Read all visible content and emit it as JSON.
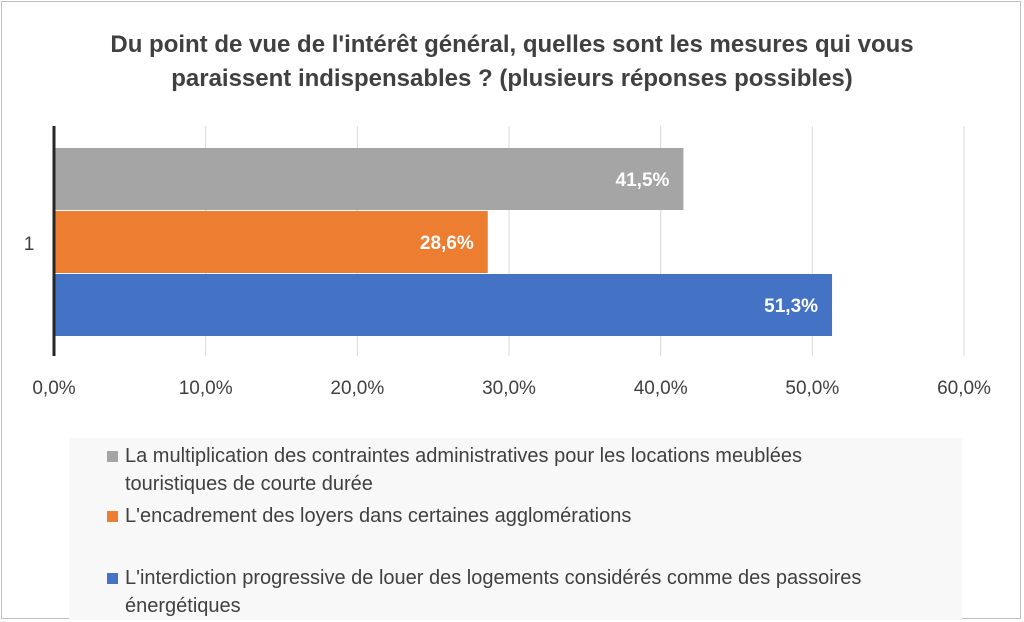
{
  "chart_data": {
    "type": "bar",
    "orientation": "horizontal",
    "title": "Du point de vue de l'intérêt général, quelles sont les mesures qui vous paraissent indispensables ? (plusieurs réponses possibles)",
    "categories": [
      "1"
    ],
    "xlim": [
      0,
      60
    ],
    "xticks": [
      "0,0%",
      "10,0%",
      "20,0%",
      "30,0%",
      "40,0%",
      "50,0%",
      "60,0%"
    ],
    "grid": true,
    "legend_position": "bottom",
    "series": [
      {
        "name": "La multiplication des contraintes administratives pour les locations meublées touristiques de courte durée",
        "values": [
          41.5
        ],
        "label": "41,5%",
        "color": "#a5a5a5"
      },
      {
        "name": "L'encadrement des loyers dans certaines agglomérations",
        "values": [
          28.6
        ],
        "label": "28,6%",
        "color": "#ed7d31"
      },
      {
        "name": "L'interdiction progressive de louer des logements considérés comme des passoires énergétiques",
        "values": [
          51.3
        ],
        "label": "51,3%",
        "color": "#4472c4"
      }
    ]
  }
}
